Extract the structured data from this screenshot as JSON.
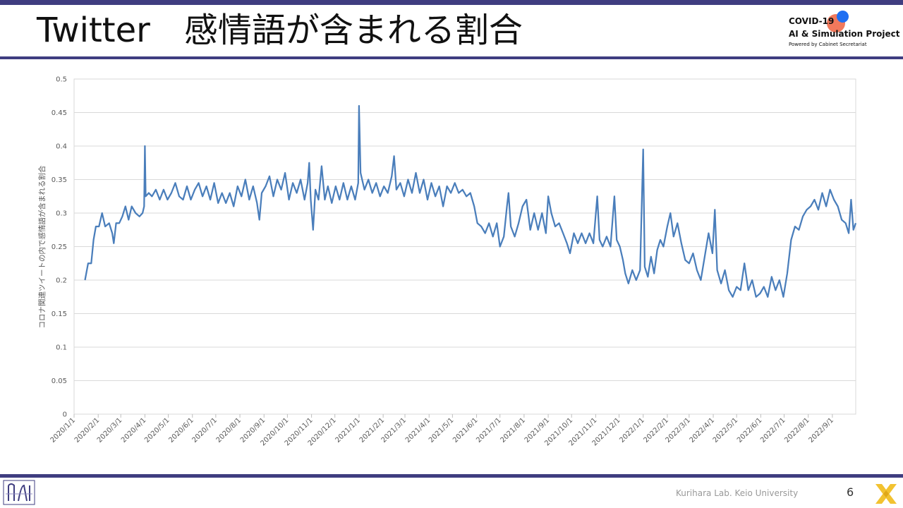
{
  "slide": {
    "title": "Twitter　感情語が含まれる割合",
    "page_number": "6",
    "footer": "Kurihara Lab. Keio University"
  },
  "logo": {
    "line1": "COVID-19",
    "line2": "AI & Simulation Project",
    "line3": "Powered by Cabinet Secretariat"
  },
  "colors": {
    "accent_bar": "#3f3d80",
    "series": "#4a7ebb",
    "logo_x": "#f2c230"
  },
  "chart_data": {
    "type": "line",
    "title": "",
    "xlabel": "",
    "ylabel": "コロナ関連ツイートの内で感情語が含まれる割合",
    "ylim": [
      0,
      0.5
    ],
    "y_ticks": [
      "0",
      "0.05",
      "0.1",
      "0.15",
      "0.2",
      "0.25",
      "0.3",
      "0.35",
      "0.4",
      "0.45",
      "0.5"
    ],
    "x_range": [
      "2020-01-01",
      "2022-10-01"
    ],
    "x_ticks": [
      "2020/1/1",
      "2020/2/1",
      "2020/3/1",
      "2020/4/1",
      "2020/5/1",
      "2020/6/1",
      "2020/7/1",
      "2020/8/1",
      "2020/9/1",
      "2020/10/1",
      "2020/11/1",
      "2020/12/1",
      "2021/1/1",
      "2021/2/1",
      "2021/3/1",
      "2021/4/1",
      "2021/5/1",
      "2021/6/1",
      "2021/7/1",
      "2021/8/1",
      "2021/9/1",
      "2021/10/1",
      "2021/11/1",
      "2021/12/1",
      "2022/1/1",
      "2022/2/1",
      "2022/3/1",
      "2022/4/1",
      "2022/5/1",
      "2022/6/1",
      "2022/7/1",
      "2022/8/1",
      "2022/9/1"
    ],
    "grid": true,
    "legend": "none",
    "series": [
      {
        "color": "#4a7ebb",
        "points": [
          [
            "2020-01-15",
            0.2
          ],
          [
            "2020-01-19",
            0.225
          ],
          [
            "2020-01-23",
            0.225
          ],
          [
            "2020-01-26",
            0.26
          ],
          [
            "2020-01-29",
            0.28
          ],
          [
            "2020-02-02",
            0.28
          ],
          [
            "2020-02-06",
            0.3
          ],
          [
            "2020-02-10",
            0.28
          ],
          [
            "2020-02-15",
            0.285
          ],
          [
            "2020-02-19",
            0.27
          ],
          [
            "2020-02-21",
            0.255
          ],
          [
            "2020-02-24",
            0.285
          ],
          [
            "2020-02-28",
            0.285
          ],
          [
            "2020-03-03",
            0.295
          ],
          [
            "2020-03-07",
            0.31
          ],
          [
            "2020-03-11",
            0.29
          ],
          [
            "2020-03-15",
            0.31
          ],
          [
            "2020-03-20",
            0.3
          ],
          [
            "2020-03-25",
            0.295
          ],
          [
            "2020-03-29",
            0.3
          ],
          [
            "2020-03-31",
            0.31
          ],
          [
            "2020-04-01",
            0.4
          ],
          [
            "2020-04-02",
            0.325
          ],
          [
            "2020-04-06",
            0.33
          ],
          [
            "2020-04-10",
            0.325
          ],
          [
            "2020-04-15",
            0.335
          ],
          [
            "2020-04-20",
            0.32
          ],
          [
            "2020-04-25",
            0.335
          ],
          [
            "2020-04-30",
            0.32
          ],
          [
            "2020-05-05",
            0.33
          ],
          [
            "2020-05-10",
            0.345
          ],
          [
            "2020-05-15",
            0.325
          ],
          [
            "2020-05-20",
            0.32
          ],
          [
            "2020-05-25",
            0.34
          ],
          [
            "2020-05-30",
            0.32
          ],
          [
            "2020-06-04",
            0.335
          ],
          [
            "2020-06-09",
            0.345
          ],
          [
            "2020-06-14",
            0.325
          ],
          [
            "2020-06-19",
            0.34
          ],
          [
            "2020-06-24",
            0.32
          ],
          [
            "2020-06-29",
            0.345
          ],
          [
            "2020-07-04",
            0.315
          ],
          [
            "2020-07-09",
            0.33
          ],
          [
            "2020-07-14",
            0.315
          ],
          [
            "2020-07-19",
            0.33
          ],
          [
            "2020-07-24",
            0.31
          ],
          [
            "2020-07-29",
            0.34
          ],
          [
            "2020-08-03",
            0.325
          ],
          [
            "2020-08-08",
            0.35
          ],
          [
            "2020-08-13",
            0.32
          ],
          [
            "2020-08-18",
            0.34
          ],
          [
            "2020-08-23",
            0.315
          ],
          [
            "2020-08-26",
            0.29
          ],
          [
            "2020-08-29",
            0.33
          ],
          [
            "2020-09-03",
            0.34
          ],
          [
            "2020-09-08",
            0.355
          ],
          [
            "2020-09-13",
            0.325
          ],
          [
            "2020-09-18",
            0.35
          ],
          [
            "2020-09-23",
            0.335
          ],
          [
            "2020-09-28",
            0.36
          ],
          [
            "2020-10-03",
            0.32
          ],
          [
            "2020-10-08",
            0.345
          ],
          [
            "2020-10-13",
            0.33
          ],
          [
            "2020-10-18",
            0.35
          ],
          [
            "2020-10-23",
            0.32
          ],
          [
            "2020-10-27",
            0.345
          ],
          [
            "2020-10-29",
            0.375
          ],
          [
            "2020-10-31",
            0.32
          ],
          [
            "2020-11-03",
            0.275
          ],
          [
            "2020-11-06",
            0.335
          ],
          [
            "2020-11-10",
            0.32
          ],
          [
            "2020-11-14",
            0.37
          ],
          [
            "2020-11-18",
            0.32
          ],
          [
            "2020-11-22",
            0.34
          ],
          [
            "2020-11-27",
            0.315
          ],
          [
            "2020-12-02",
            0.34
          ],
          [
            "2020-12-07",
            0.32
          ],
          [
            "2020-12-12",
            0.345
          ],
          [
            "2020-12-17",
            0.32
          ],
          [
            "2020-12-22",
            0.34
          ],
          [
            "2020-12-27",
            0.32
          ],
          [
            "2020-12-31",
            0.345
          ],
          [
            "2021-01-01",
            0.46
          ],
          [
            "2021-01-03",
            0.36
          ],
          [
            "2021-01-08",
            0.335
          ],
          [
            "2021-01-13",
            0.35
          ],
          [
            "2021-01-18",
            0.33
          ],
          [
            "2021-01-23",
            0.345
          ],
          [
            "2021-01-28",
            0.325
          ],
          [
            "2021-02-02",
            0.34
          ],
          [
            "2021-02-07",
            0.33
          ],
          [
            "2021-02-12",
            0.355
          ],
          [
            "2021-02-15",
            0.385
          ],
          [
            "2021-02-18",
            0.335
          ],
          [
            "2021-02-23",
            0.345
          ],
          [
            "2021-02-28",
            0.325
          ],
          [
            "2021-03-05",
            0.35
          ],
          [
            "2021-03-10",
            0.33
          ],
          [
            "2021-03-15",
            0.36
          ],
          [
            "2021-03-20",
            0.33
          ],
          [
            "2021-03-25",
            0.35
          ],
          [
            "2021-03-30",
            0.32
          ],
          [
            "2021-04-04",
            0.345
          ],
          [
            "2021-04-09",
            0.325
          ],
          [
            "2021-04-14",
            0.34
          ],
          [
            "2021-04-19",
            0.31
          ],
          [
            "2021-04-24",
            0.34
          ],
          [
            "2021-04-29",
            0.33
          ],
          [
            "2021-05-04",
            0.345
          ],
          [
            "2021-05-09",
            0.33
          ],
          [
            "2021-05-14",
            0.335
          ],
          [
            "2021-05-19",
            0.325
          ],
          [
            "2021-05-24",
            0.33
          ],
          [
            "2021-05-29",
            0.31
          ],
          [
            "2021-06-02",
            0.285
          ],
          [
            "2021-06-07",
            0.28
          ],
          [
            "2021-06-12",
            0.27
          ],
          [
            "2021-06-17",
            0.285
          ],
          [
            "2021-06-22",
            0.265
          ],
          [
            "2021-06-27",
            0.285
          ],
          [
            "2021-07-01",
            0.25
          ],
          [
            "2021-07-06",
            0.265
          ],
          [
            "2021-07-10",
            0.31
          ],
          [
            "2021-07-12",
            0.33
          ],
          [
            "2021-07-15",
            0.28
          ],
          [
            "2021-07-20",
            0.265
          ],
          [
            "2021-07-25",
            0.285
          ],
          [
            "2021-07-30",
            0.31
          ],
          [
            "2021-08-04",
            0.32
          ],
          [
            "2021-08-09",
            0.275
          ],
          [
            "2021-08-14",
            0.3
          ],
          [
            "2021-08-19",
            0.275
          ],
          [
            "2021-08-24",
            0.3
          ],
          [
            "2021-08-29",
            0.27
          ],
          [
            "2021-09-01",
            0.325
          ],
          [
            "2021-09-05",
            0.3
          ],
          [
            "2021-09-10",
            0.28
          ],
          [
            "2021-09-15",
            0.285
          ],
          [
            "2021-09-20",
            0.27
          ],
          [
            "2021-09-25",
            0.255
          ],
          [
            "2021-09-29",
            0.24
          ],
          [
            "2021-10-04",
            0.27
          ],
          [
            "2021-10-09",
            0.255
          ],
          [
            "2021-10-14",
            0.27
          ],
          [
            "2021-10-19",
            0.255
          ],
          [
            "2021-10-24",
            0.27
          ],
          [
            "2021-10-29",
            0.255
          ],
          [
            "2021-11-03",
            0.325
          ],
          [
            "2021-11-06",
            0.26
          ],
          [
            "2021-11-10",
            0.25
          ],
          [
            "2021-11-15",
            0.265
          ],
          [
            "2021-11-20",
            0.25
          ],
          [
            "2021-11-25",
            0.325
          ],
          [
            "2021-11-28",
            0.26
          ],
          [
            "2021-12-02",
            0.25
          ],
          [
            "2021-12-06",
            0.23
          ],
          [
            "2021-12-09",
            0.21
          ],
          [
            "2021-12-13",
            0.195
          ],
          [
            "2021-12-18",
            0.215
          ],
          [
            "2021-12-23",
            0.2
          ],
          [
            "2021-12-28",
            0.215
          ],
          [
            "2022-01-01",
            0.395
          ],
          [
            "2022-01-03",
            0.22
          ],
          [
            "2022-01-07",
            0.205
          ],
          [
            "2022-01-11",
            0.235
          ],
          [
            "2022-01-15",
            0.21
          ],
          [
            "2022-01-19",
            0.245
          ],
          [
            "2022-01-23",
            0.26
          ],
          [
            "2022-01-27",
            0.25
          ],
          [
            "2022-02-01",
            0.28
          ],
          [
            "2022-02-05",
            0.3
          ],
          [
            "2022-02-09",
            0.265
          ],
          [
            "2022-02-14",
            0.285
          ],
          [
            "2022-02-19",
            0.255
          ],
          [
            "2022-02-24",
            0.23
          ],
          [
            "2022-03-01",
            0.225
          ],
          [
            "2022-03-06",
            0.24
          ],
          [
            "2022-03-11",
            0.215
          ],
          [
            "2022-03-16",
            0.2
          ],
          [
            "2022-03-21",
            0.235
          ],
          [
            "2022-03-26",
            0.27
          ],
          [
            "2022-03-31",
            0.24
          ],
          [
            "2022-04-03",
            0.305
          ],
          [
            "2022-04-06",
            0.215
          ],
          [
            "2022-04-11",
            0.195
          ],
          [
            "2022-04-16",
            0.215
          ],
          [
            "2022-04-21",
            0.185
          ],
          [
            "2022-04-26",
            0.175
          ],
          [
            "2022-05-01",
            0.19
          ],
          [
            "2022-05-06",
            0.185
          ],
          [
            "2022-05-11",
            0.225
          ],
          [
            "2022-05-16",
            0.185
          ],
          [
            "2022-05-21",
            0.2
          ],
          [
            "2022-05-26",
            0.175
          ],
          [
            "2022-05-31",
            0.18
          ],
          [
            "2022-06-05",
            0.19
          ],
          [
            "2022-06-10",
            0.175
          ],
          [
            "2022-06-15",
            0.205
          ],
          [
            "2022-06-20",
            0.185
          ],
          [
            "2022-06-25",
            0.2
          ],
          [
            "2022-06-30",
            0.175
          ],
          [
            "2022-07-05",
            0.21
          ],
          [
            "2022-07-10",
            0.26
          ],
          [
            "2022-07-15",
            0.28
          ],
          [
            "2022-07-20",
            0.275
          ],
          [
            "2022-07-25",
            0.295
          ],
          [
            "2022-07-30",
            0.305
          ],
          [
            "2022-08-04",
            0.31
          ],
          [
            "2022-08-09",
            0.32
          ],
          [
            "2022-08-14",
            0.305
          ],
          [
            "2022-08-19",
            0.33
          ],
          [
            "2022-08-24",
            0.31
          ],
          [
            "2022-08-29",
            0.335
          ],
          [
            "2022-09-03",
            0.32
          ],
          [
            "2022-09-08",
            0.31
          ],
          [
            "2022-09-13",
            0.29
          ],
          [
            "2022-09-18",
            0.285
          ],
          [
            "2022-09-22",
            0.27
          ],
          [
            "2022-09-25",
            0.32
          ],
          [
            "2022-09-28",
            0.275
          ],
          [
            "2022-10-01",
            0.285
          ]
        ]
      }
    ]
  }
}
